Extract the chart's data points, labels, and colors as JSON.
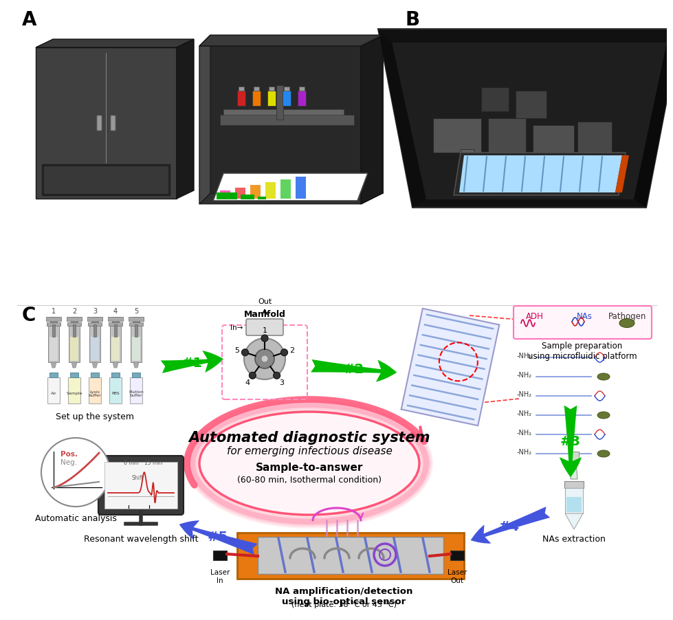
{
  "panel_A_label": "A",
  "panel_B_label": "B",
  "panel_C_label": "C",
  "title_main": "Automated diagnostic system",
  "title_sub": "for emerging infectious disease",
  "sample_to_answer": "Sample-to-answer",
  "sample_to_answer_detail": "(60-80 min, Isothermal condition)",
  "step1_label": "#1",
  "step2_label": "#2",
  "step3_label": "#3",
  "step4_label": "#4",
  "step5_label": "#5",
  "manifold_title": "Manifold",
  "set_up_label": "Set up the system",
  "sample_prep_label": "Sample preparation\nusing microfluidic platform",
  "nas_extraction_label": "NAs extraction",
  "na_amp_label": "NA amplification/detection\nusing bio-optical sensor",
  "na_amp_detail": "(heat plate: 38 °C or 43 °C)",
  "resonant_label": "Resonant wavelength shift",
  "auto_analysis_label": "Automatic analysis",
  "laser_in": "Laser\nIn",
  "laser_out": "Laser\nOut",
  "manifold_in": "In→",
  "manifold_out": "Out",
  "adh_label": "ADH",
  "nas_label": "NAs",
  "pathogen_label": "Pathogen",
  "pos_label": "Pos.",
  "neg_label": "Neg.",
  "bg_color": "#ffffff",
  "green_arrow": "#00bb00",
  "blue_arrow": "#4455dd",
  "pink_arrow": "#ff5577",
  "orange_plate": "#e87810",
  "pink_border": "#ff55bb",
  "device_dark": "#2e2e2e",
  "device_mid": "#404040",
  "device_light": "#555555",
  "device_top": "#3a3a3a",
  "device_side": "#1a1a1a"
}
